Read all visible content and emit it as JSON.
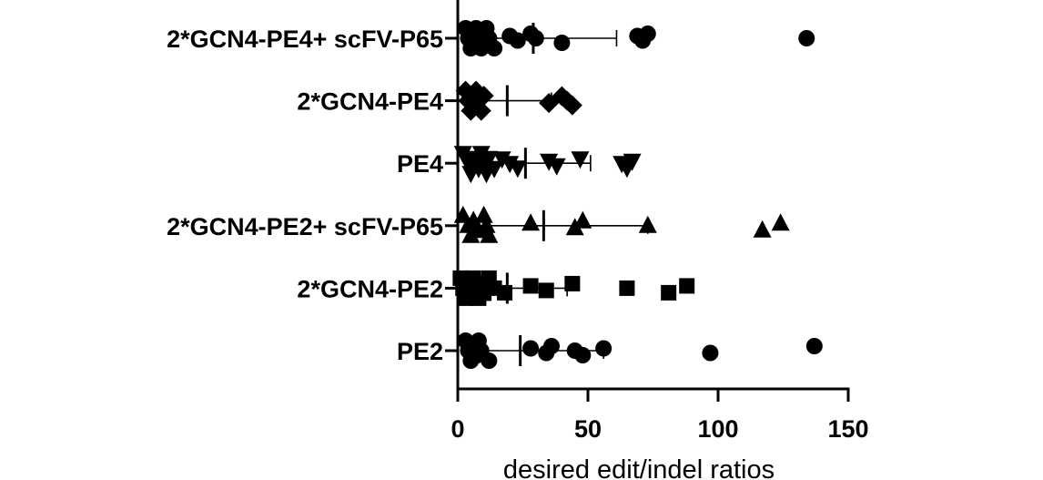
{
  "chart_data": {
    "type": "scatter",
    "orientation": "horizontal",
    "title": "",
    "xlabel": "desired edit/indel ratios",
    "ylabel": "",
    "xlim": [
      0,
      150
    ],
    "x_ticks": [
      0,
      50,
      100,
      150
    ],
    "x_tick_labels": [
      "0",
      "50",
      "100",
      "150"
    ],
    "grid": false,
    "legend": "none",
    "error_bars": "mean with SD",
    "categories": [
      "2*GCN4-PE4+ scFV-P65",
      "2*GCN4-PE4",
      "PE4",
      "2*GCN4-PE2+ scFV-P65",
      "2*GCN4-PE2",
      "PE2"
    ],
    "series": [
      {
        "category": "2*GCN4-PE4+ scFV-P65",
        "marker": "circle",
        "mean": 29,
        "sd_low": 2,
        "sd_high": 61,
        "values": [
          3,
          4,
          5,
          5,
          6,
          7,
          8,
          9,
          10,
          10,
          11,
          12,
          14,
          20,
          23,
          28,
          30,
          40,
          69,
          71,
          73,
          134
        ]
      },
      {
        "category": "2*GCN4-PE4",
        "marker": "diamond",
        "mean": 19,
        "sd_low": 2,
        "sd_high": 36,
        "values": [
          3,
          4,
          5,
          5,
          6,
          7,
          8,
          9,
          10,
          35,
          40,
          42,
          44
        ]
      },
      {
        "category": "PE4",
        "marker": "triangle-down",
        "mean": 26,
        "sd_low": 2,
        "sd_high": 51,
        "values": [
          2,
          4,
          5,
          6,
          8,
          9,
          10,
          11,
          12,
          14,
          17,
          20,
          23,
          35,
          38,
          47,
          63,
          65,
          67
        ]
      },
      {
        "category": "2*GCN4-PE2+ scFV-P65",
        "marker": "triangle-up",
        "mean": 33,
        "sd_low": 2,
        "sd_high": 73,
        "values": [
          2,
          4,
          5,
          6,
          8,
          10,
          11,
          12,
          28,
          45,
          48,
          73,
          117,
          124
        ]
      },
      {
        "category": "2*GCN4-PE2",
        "marker": "square",
        "mean": 19,
        "sd_low": 1,
        "sd_high": 42,
        "values": [
          1,
          2,
          3,
          4,
          5,
          6,
          7,
          8,
          9,
          10,
          12,
          14,
          18,
          28,
          34,
          44,
          65,
          81,
          88
        ]
      },
      {
        "category": "PE2",
        "marker": "circle",
        "mean": 24,
        "sd_low": 2,
        "sd_high": 56,
        "values": [
          3,
          4,
          5,
          6,
          7,
          8,
          9,
          12,
          28,
          34,
          36,
          45,
          48,
          56,
          97,
          137
        ]
      }
    ]
  }
}
